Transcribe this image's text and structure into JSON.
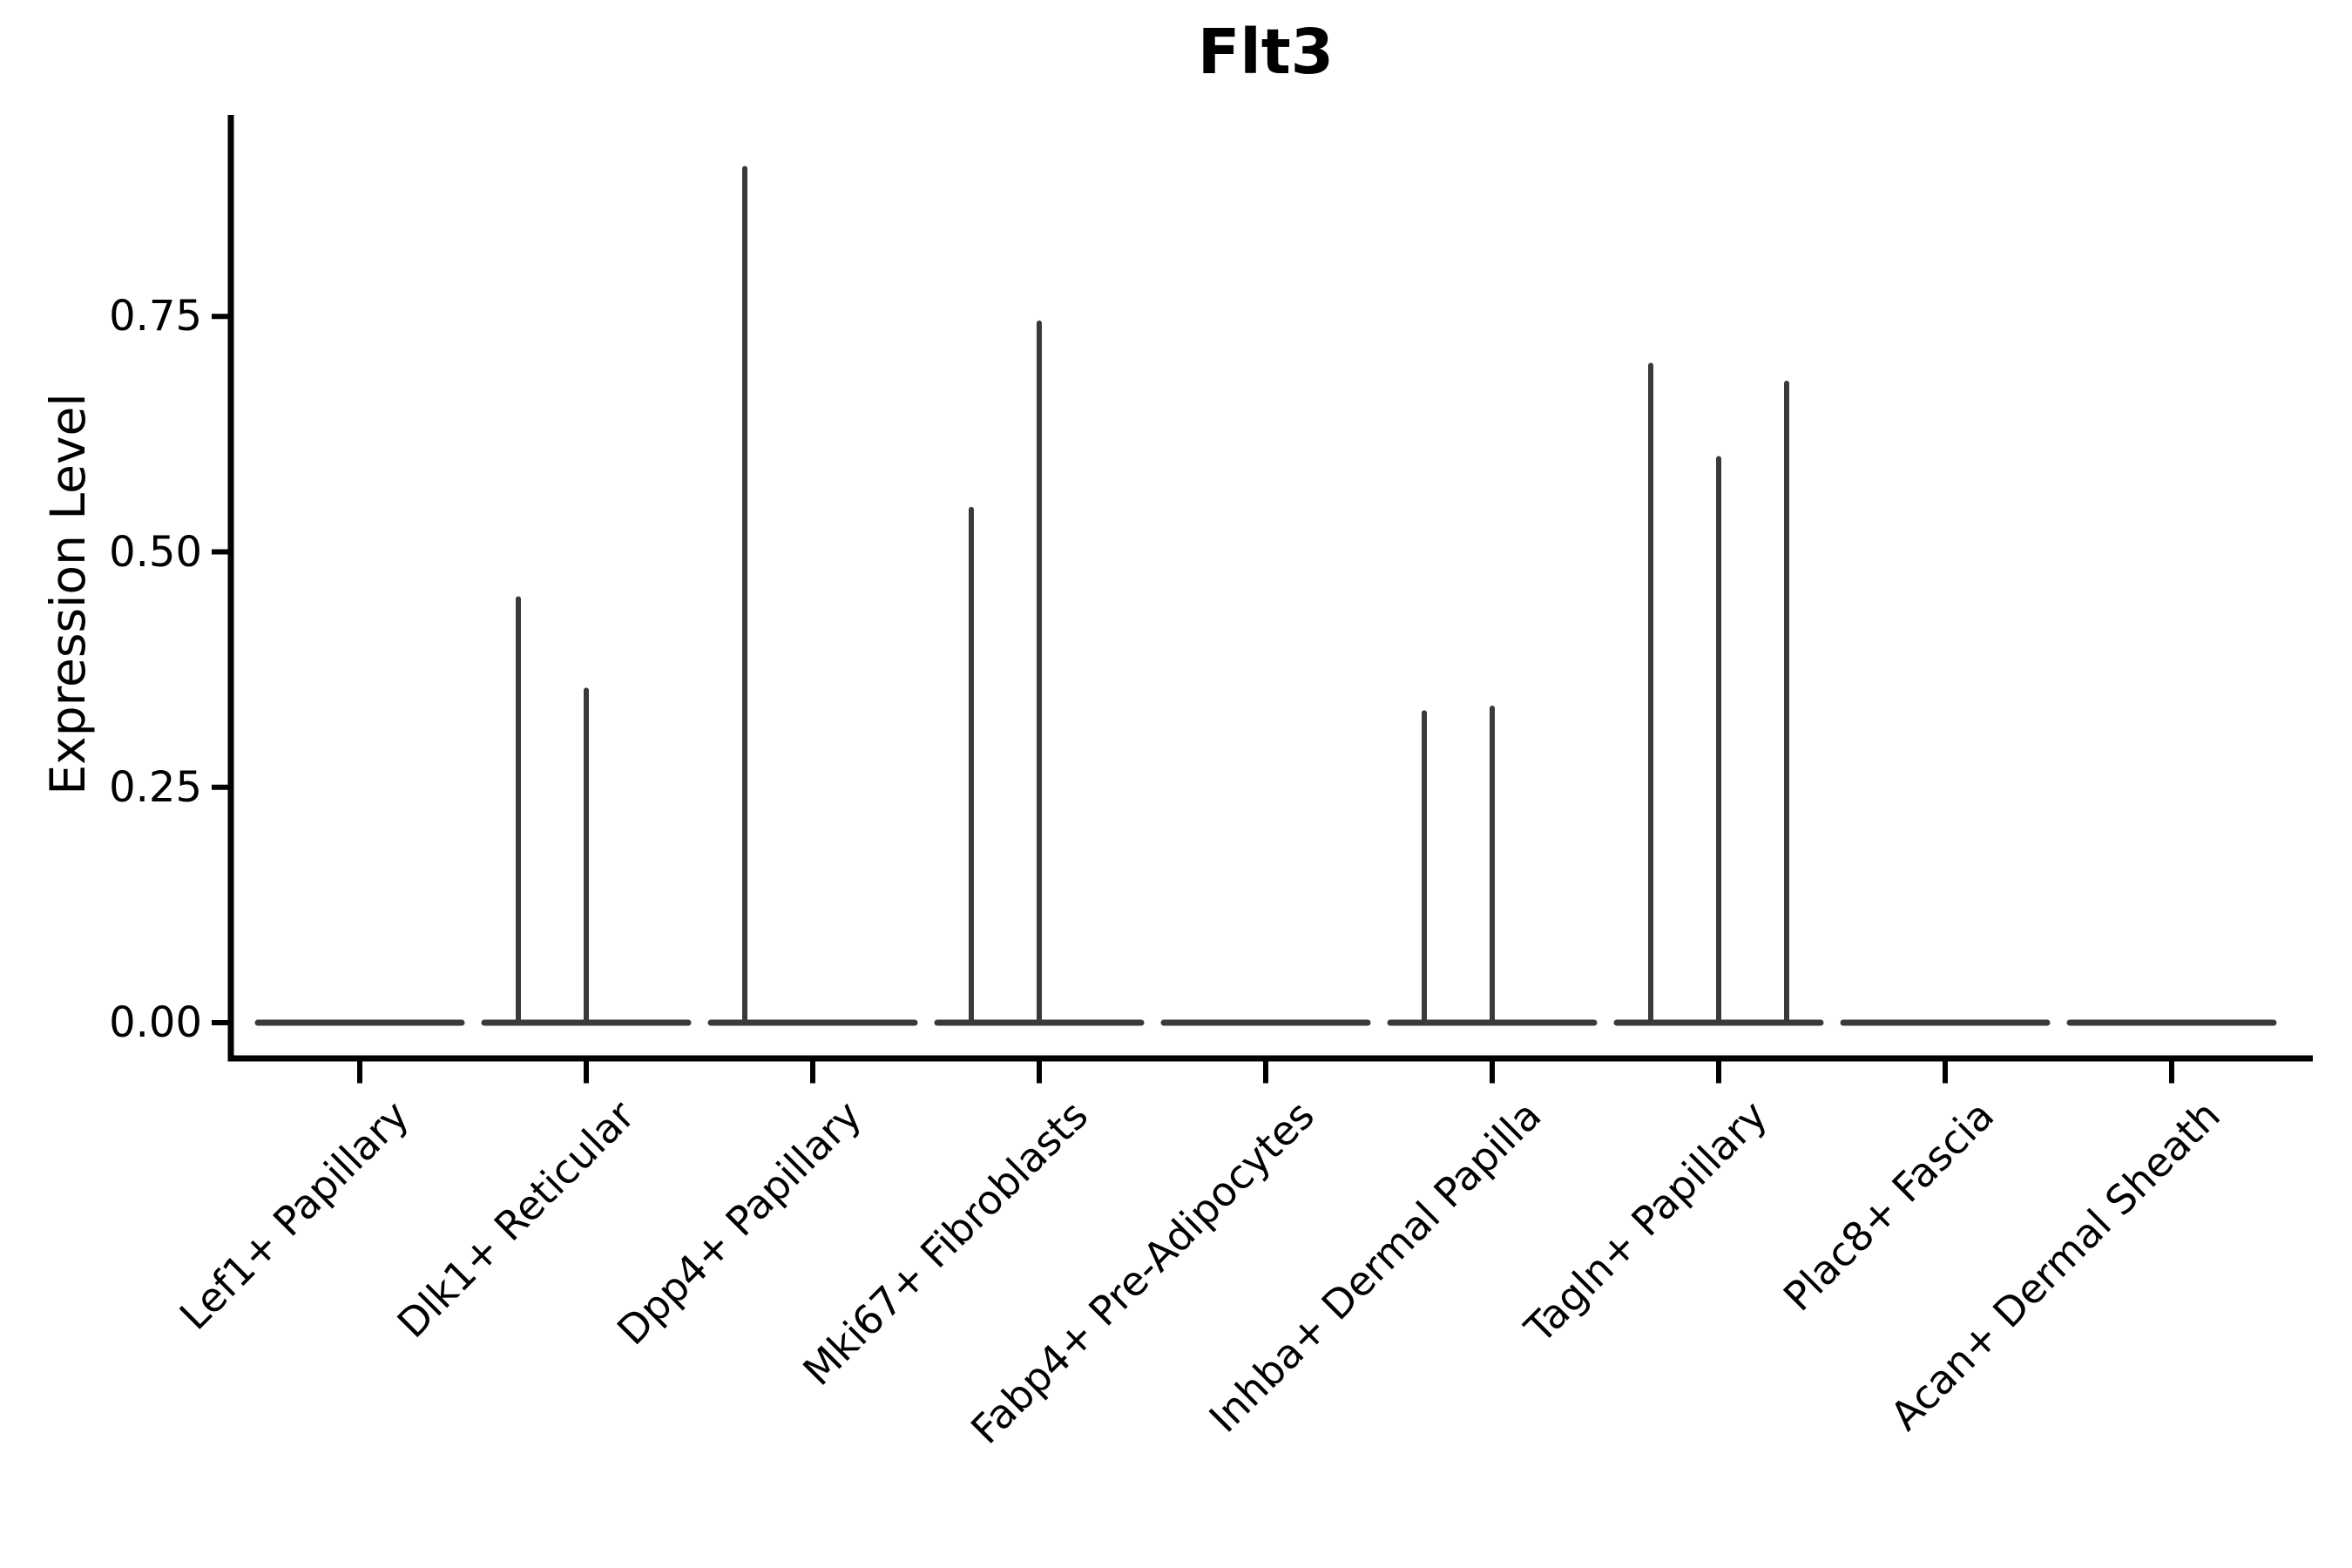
{
  "figure": {
    "title": "Flt3"
  },
  "colors": {
    "background": "#ffffff",
    "axis": "#000000",
    "text": "#000000",
    "violin_stroke": "#3a3a3a"
  },
  "chart_data": {
    "type": "violin",
    "title": "Flt3",
    "xlabel": "",
    "ylabel": "Expression Level",
    "ylim": [
      0,
      0.96
    ],
    "yticks": [
      0,
      0.25,
      0.5,
      0.75
    ],
    "ytick_labels": [
      "0.00",
      "0.25",
      "0.50",
      "0.75"
    ],
    "grid": false,
    "legend": "none",
    "violins_per_group": 3,
    "categories": [
      "Lef1+ Papillary",
      "Dlk1+ Reticular",
      "Dpp4+ Papillary",
      "Mki67+ Fibroblasts",
      "Fabp4+ Pre-Adipocytes",
      "Inhba+ Dermal Papilla",
      "Tagln+ Papillary",
      "Plac8+ Fascia",
      "Acan+ Dermal Sheath"
    ],
    "groups": [
      {
        "category": "Lef1+ Papillary",
        "baseline_value": 0,
        "spikes": []
      },
      {
        "category": "Dlk1+ Reticular",
        "baseline_value": 0,
        "spikes": [
          {
            "slot": "left",
            "peak": 0.45
          },
          {
            "slot": "center",
            "peak": 0.353
          }
        ]
      },
      {
        "category": "Dpp4+ Papillary",
        "baseline_value": 0,
        "spikes": [
          {
            "slot": "left",
            "peak": 0.907
          }
        ]
      },
      {
        "category": "Mki67+ Fibroblasts",
        "baseline_value": 0,
        "spikes": [
          {
            "slot": "left",
            "peak": 0.545
          },
          {
            "slot": "center",
            "peak": 0.743
          }
        ]
      },
      {
        "category": "Fabp4+ Pre-Adipocytes",
        "baseline_value": 0,
        "spikes": []
      },
      {
        "category": "Inhba+ Dermal Papilla",
        "baseline_value": 0,
        "spikes": [
          {
            "slot": "left",
            "peak": 0.329
          },
          {
            "slot": "center",
            "peak": 0.334
          }
        ]
      },
      {
        "category": "Tagln+ Papillary",
        "baseline_value": 0,
        "spikes": [
          {
            "slot": "left",
            "peak": 0.698
          },
          {
            "slot": "center",
            "peak": 0.599
          },
          {
            "slot": "right",
            "peak": 0.679
          }
        ]
      },
      {
        "category": "Plac8+ Fascia",
        "baseline_value": 0,
        "spikes": []
      },
      {
        "category": "Acan+ Dermal Sheath",
        "baseline_value": 0,
        "spikes": []
      }
    ]
  }
}
